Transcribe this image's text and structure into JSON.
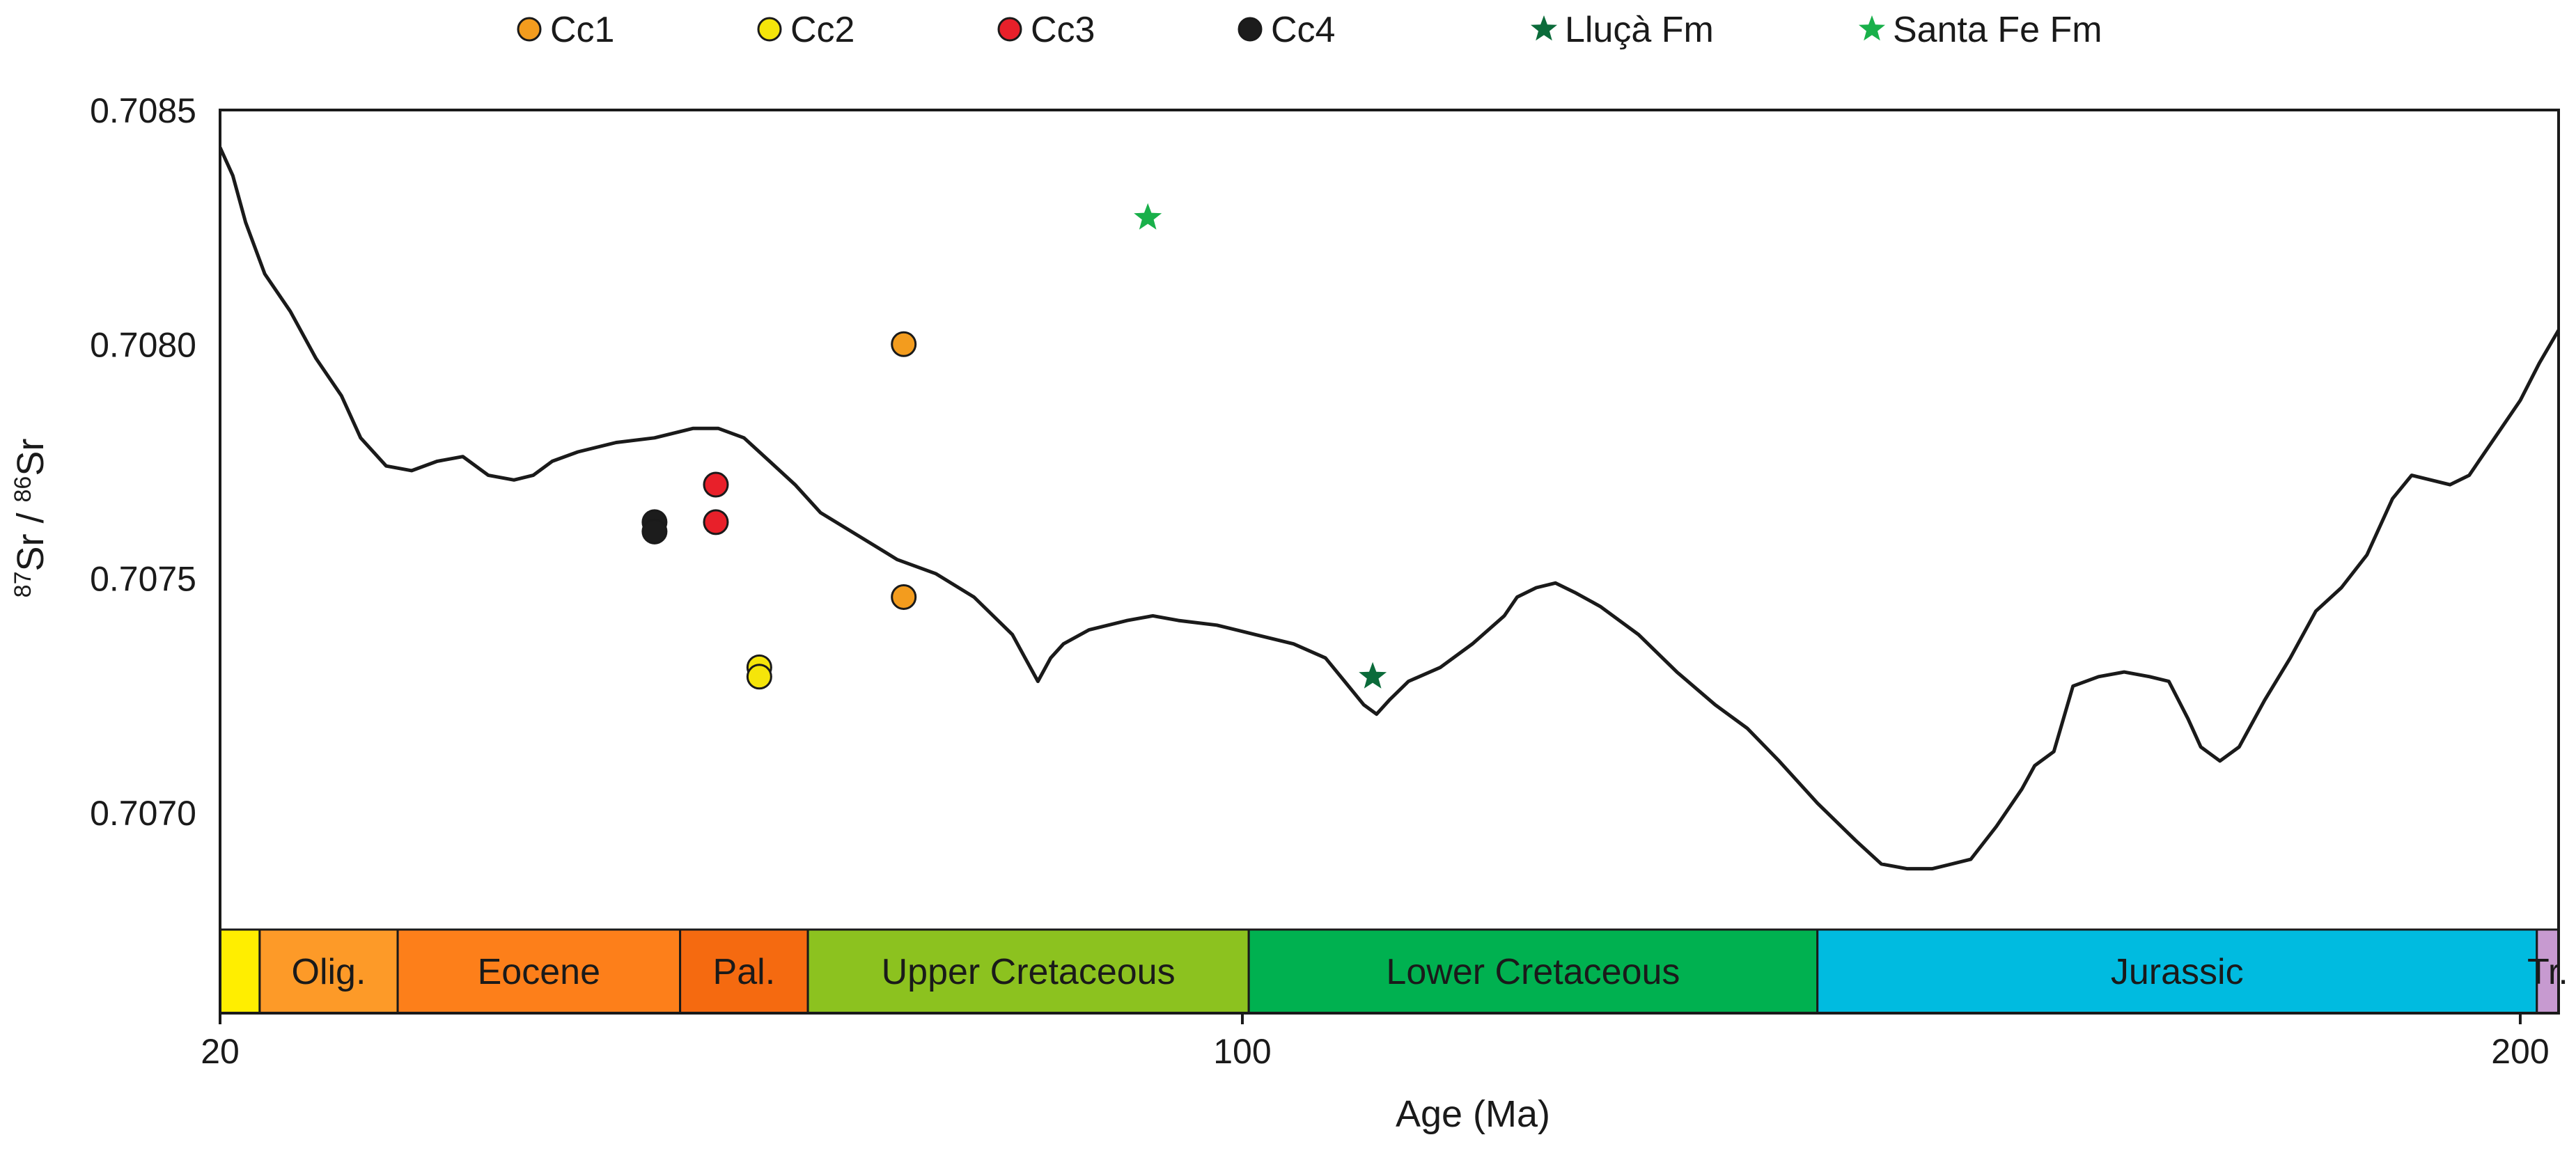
{
  "chart_data": {
    "type": "scatter",
    "xlabel": "Age (Ma)",
    "ylabel": "87Sr / 86Sr",
    "ylabel_parts": {
      "sup1": "87",
      "main1": "Sr / ",
      "sup2": "86",
      "main2": "Sr"
    },
    "xlim": [
      20,
      203
    ],
    "ylim": [
      0.70675,
      0.7085
    ],
    "x_ticks": [
      {
        "value": 20,
        "label": "20"
      },
      {
        "value": 100,
        "label": "100"
      },
      {
        "value": 200,
        "label": "200"
      }
    ],
    "y_ticks": [
      {
        "value": 0.7085,
        "label": "0.7085"
      },
      {
        "value": 0.708,
        "label": "0.7080"
      },
      {
        "value": 0.7075,
        "label": "0.7075"
      },
      {
        "value": 0.707,
        "label": "0.7070"
      }
    ],
    "legend_position": "top",
    "series": [
      {
        "name": "Cc1",
        "marker": "circle",
        "color": "#f39c1e",
        "points": [
          [
            73.5,
            0.708
          ],
          [
            73.5,
            0.70746
          ]
        ]
      },
      {
        "name": "Cc2",
        "marker": "circle",
        "color": "#f5e50a",
        "points": [
          [
            62.2,
            0.70731
          ],
          [
            62.2,
            0.70729
          ]
        ]
      },
      {
        "name": "Cc3",
        "marker": "circle",
        "color": "#e8202a",
        "points": [
          [
            58.8,
            0.7077
          ],
          [
            58.8,
            0.70762
          ]
        ]
      },
      {
        "name": "Cc4",
        "marker": "circle",
        "color": "#1c1c1c",
        "points": [
          [
            54.0,
            0.70762
          ],
          [
            54.0,
            0.7076
          ]
        ]
      },
      {
        "name": "Lluçà Fm",
        "marker": "star",
        "color": "#0b6b3a",
        "points": [
          [
            110.2,
            0.70729
          ]
        ]
      },
      {
        "name": "Santa Fe Fm",
        "marker": "star",
        "color": "#19b04a",
        "points": [
          [
            92.6,
            0.70827
          ]
        ]
      }
    ],
    "reference_curve": {
      "color": "#1a1a1a",
      "points": [
        [
          20,
          0.70842
        ],
        [
          21,
          0.70836
        ],
        [
          22,
          0.70826
        ],
        [
          23.5,
          0.70815
        ],
        [
          25.5,
          0.70807
        ],
        [
          27.5,
          0.70797
        ],
        [
          29.5,
          0.70789
        ],
        [
          31,
          0.7078
        ],
        [
          33,
          0.70774
        ],
        [
          35,
          0.70773
        ],
        [
          37,
          0.70775
        ],
        [
          39,
          0.70776
        ],
        [
          41,
          0.70772
        ],
        [
          43,
          0.70771
        ],
        [
          44.5,
          0.70772
        ],
        [
          46,
          0.70775
        ],
        [
          48,
          0.70777
        ],
        [
          51,
          0.70779
        ],
        [
          54,
          0.7078
        ],
        [
          57,
          0.70782
        ],
        [
          59,
          0.70782
        ],
        [
          61,
          0.7078
        ],
        [
          63,
          0.70775
        ],
        [
          65,
          0.7077
        ],
        [
          67,
          0.70764
        ],
        [
          70,
          0.70759
        ],
        [
          73,
          0.70754
        ],
        [
          76,
          0.70751
        ],
        [
          79,
          0.70746
        ],
        [
          82,
          0.70738
        ],
        [
          83,
          0.70733
        ],
        [
          84,
          0.70728
        ],
        [
          85,
          0.70733
        ],
        [
          86,
          0.70736
        ],
        [
          88,
          0.70739
        ],
        [
          91,
          0.70741
        ],
        [
          93,
          0.70742
        ],
        [
          95,
          0.70741
        ],
        [
          98,
          0.7074
        ],
        [
          101,
          0.70738
        ],
        [
          104,
          0.70736
        ],
        [
          106.5,
          0.70733
        ],
        [
          108,
          0.70728
        ],
        [
          109.5,
          0.70723
        ],
        [
          110.5,
          0.70721
        ],
        [
          111.5,
          0.70724
        ],
        [
          113,
          0.70728
        ],
        [
          115.5,
          0.70731
        ],
        [
          118,
          0.70736
        ],
        [
          120.5,
          0.70742
        ],
        [
          121.5,
          0.70746
        ],
        [
          123,
          0.70748
        ],
        [
          124.5,
          0.70749
        ],
        [
          126,
          0.70747
        ],
        [
          128,
          0.70744
        ],
        [
          131,
          0.70738
        ],
        [
          134,
          0.7073
        ],
        [
          137,
          0.70723
        ],
        [
          139.5,
          0.70718
        ],
        [
          142,
          0.70711
        ],
        [
          145,
          0.70702
        ],
        [
          148,
          0.70694
        ],
        [
          150,
          0.70689
        ],
        [
          152,
          0.70688
        ],
        [
          154,
          0.70688
        ],
        [
          157,
          0.7069
        ],
        [
          159,
          0.70697
        ],
        [
          161,
          0.70705
        ],
        [
          162,
          0.7071
        ],
        [
          163.5,
          0.70713
        ],
        [
          165,
          0.70727
        ],
        [
          167,
          0.70729
        ],
        [
          169,
          0.7073
        ],
        [
          171,
          0.70729
        ],
        [
          172.5,
          0.70728
        ],
        [
          174,
          0.7072
        ],
        [
          175,
          0.70714
        ],
        [
          176.5,
          0.70711
        ],
        [
          178,
          0.70714
        ],
        [
          180,
          0.70724
        ],
        [
          182,
          0.70733
        ],
        [
          184,
          0.70743
        ],
        [
          186,
          0.70748
        ],
        [
          188,
          0.70755
        ],
        [
          190,
          0.70767
        ],
        [
          191.5,
          0.70772
        ],
        [
          193,
          0.70771
        ],
        [
          194.5,
          0.7077
        ],
        [
          196,
          0.70772
        ],
        [
          198,
          0.7078
        ],
        [
          200,
          0.70788
        ],
        [
          201.5,
          0.70796
        ],
        [
          203,
          0.70803
        ]
      ]
    },
    "timescale": [
      {
        "label": "",
        "from": 20,
        "to": 23.1,
        "color": "#ffee00"
      },
      {
        "label": "Olig.",
        "from": 23.1,
        "to": 33.9,
        "color": "#fd9a28"
      },
      {
        "label": "Eocene",
        "from": 33.9,
        "to": 56.0,
        "color": "#fd7f1a"
      },
      {
        "label": "Pal.",
        "from": 56.0,
        "to": 66.0,
        "color": "#f56a10"
      },
      {
        "label": "Upper Cretaceous",
        "from": 66.0,
        "to": 100.5,
        "color": "#8cc21f"
      },
      {
        "label": "Lower Cretaceous",
        "from": 100.5,
        "to": 145.0,
        "color": "#00b150"
      },
      {
        "label": "Jurassic",
        "from": 145.0,
        "to": 201.3,
        "color": "#00bbe0"
      },
      {
        "label": "Tr.",
        "from": 201.3,
        "to": 203,
        "color": "#c79ad0"
      }
    ]
  }
}
